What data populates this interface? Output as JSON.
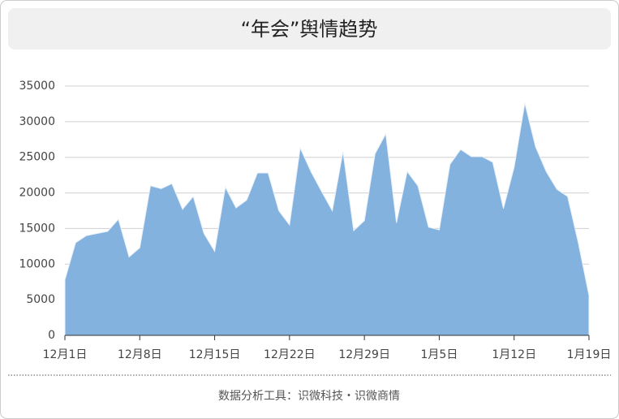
{
  "chart_data": {
    "type": "area",
    "title": "“年会”舆情趋势",
    "footer": "数据分析工具：识微科技・识微商情",
    "categories": [
      "12月1日",
      null,
      null,
      null,
      null,
      null,
      null,
      "12月8日",
      null,
      null,
      null,
      null,
      null,
      null,
      "12月15日",
      null,
      null,
      null,
      null,
      null,
      null,
      "12月22日",
      null,
      null,
      null,
      null,
      null,
      null,
      "12月29日",
      null,
      null,
      null,
      null,
      null,
      null,
      "1月5日",
      null,
      null,
      null,
      null,
      null,
      null,
      "1月12日",
      null,
      null,
      null,
      null,
      null,
      null,
      "1月19日"
    ],
    "values": [
      7800,
      13000,
      14000,
      14300,
      14600,
      16300,
      11000,
      12300,
      21000,
      20600,
      21300,
      17700,
      19500,
      14300,
      11800,
      20800,
      17900,
      19000,
      22800,
      22800,
      17500,
      15500,
      26300,
      23000,
      20200,
      17500,
      25800,
      14700,
      16100,
      25500,
      28300,
      15800,
      23000,
      21000,
      15200,
      14800,
      24000,
      26100,
      25100,
      25100,
      24300,
      17800,
      23600,
      32600,
      26500,
      23000,
      20500,
      19500,
      13000,
      5600
    ],
    "color": "#84b2df",
    "ylim": [
      0,
      35000
    ],
    "yticks": [
      0,
      5000,
      10000,
      15000,
      20000,
      25000,
      30000,
      35000
    ],
    "grid": true
  }
}
